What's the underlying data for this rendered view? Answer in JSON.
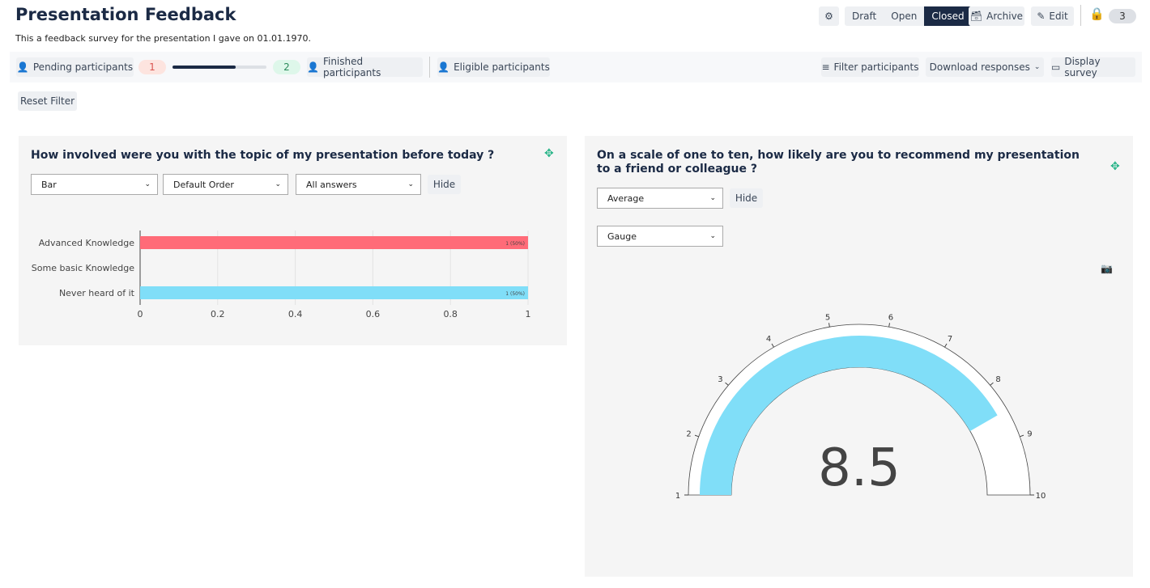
{
  "header": {
    "title": "Presentation Feedback",
    "description": "This a feedback survey for the presentation I gave on 01.01.1970.",
    "settings_icon": "gear-icon",
    "status_options": [
      "Draft",
      "Open",
      "Closed"
    ],
    "active_status": "Closed",
    "archive_label": "Archive",
    "edit_label": "Edit",
    "lock_icon": "lock-icon",
    "count": "3"
  },
  "toolbar": {
    "pending_label": "Pending participants",
    "pending_count": "1",
    "progress_percent": 67,
    "finished_count": "2",
    "finished_label": "Finished participants",
    "eligible_label": "Eligible participants",
    "filter_label": "Filter participants",
    "download_label": "Download responses",
    "display_label": "Display survey",
    "reset_label": "Reset Filter"
  },
  "colors": {
    "primary": "#1b2a45",
    "bar_red": "#ff6b78",
    "bar_blue": "#80def8",
    "move_icon": "#2bb58a"
  },
  "question1": {
    "title": "How involved were you with the topic of my presentation before today ?",
    "chart_type_select": "Bar",
    "order_select": "Default Order",
    "answers_select": "All answers",
    "hide_label": "Hide"
  },
  "question2": {
    "title": "On a scale of one to ten, how likely are you to recommend my presentation to a friend or colleague ?",
    "aggregate_select": "Average",
    "hide_label": "Hide",
    "chart_type_select": "Gauge",
    "camera_icon": "camera-icon"
  },
  "chart_data": [
    {
      "type": "bar",
      "orientation": "horizontal",
      "categories": [
        "Advanced Knowledge",
        "Some basic Knowledge",
        "Never heard of it"
      ],
      "values": [
        1,
        0,
        1
      ],
      "data_labels": [
        "1 (50%)",
        "",
        "1 (50%)"
      ],
      "colors": [
        "#ff6b78",
        "",
        "#80def8"
      ],
      "xlim": [
        0,
        1
      ],
      "x_ticks": [
        "0",
        "0.2",
        "0.4",
        "0.6",
        "0.8",
        "1"
      ],
      "grid": true
    },
    {
      "type": "gauge",
      "value": 8.5,
      "value_label": "8.5",
      "range": [
        1,
        10
      ],
      "ticks": [
        "1",
        "2",
        "3",
        "4",
        "5",
        "6",
        "7",
        "8",
        "9",
        "10"
      ],
      "bar_color": "#80def8"
    }
  ]
}
